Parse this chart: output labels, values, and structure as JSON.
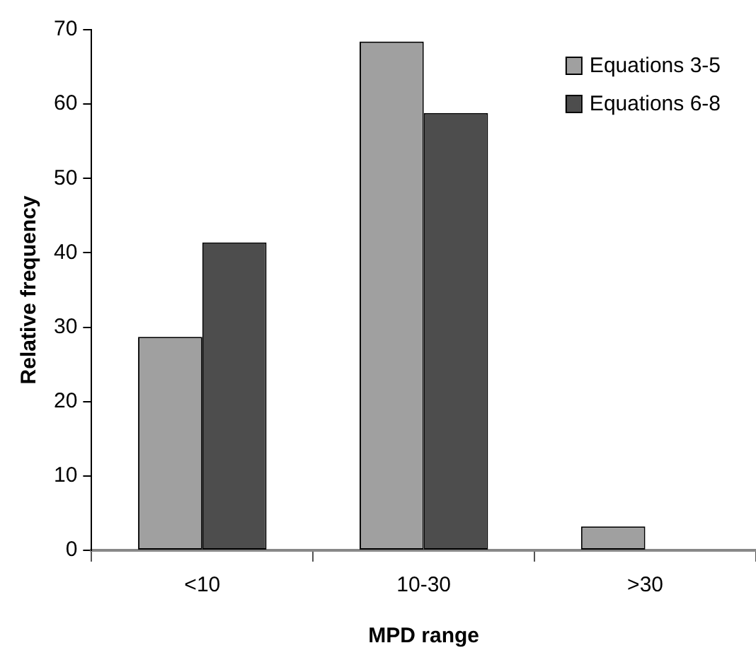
{
  "chart_data": {
    "type": "bar",
    "xlabel": "MPD range",
    "ylabel": "Relative frequency",
    "categories": [
      "<10",
      "10-30",
      ">30"
    ],
    "series": [
      {
        "name": "Equations 3-5",
        "color": "#a0a0a0",
        "values": [
          28.7,
          68.4,
          3.2
        ]
      },
      {
        "name": "Equations 6-8",
        "color": "#4d4d4d",
        "values": [
          41.4,
          58.8,
          0
        ]
      }
    ],
    "ylim": [
      0,
      70
    ],
    "yticks": [
      0,
      10,
      20,
      30,
      40,
      50,
      60,
      70
    ],
    "grid": false,
    "legend": "top right"
  }
}
